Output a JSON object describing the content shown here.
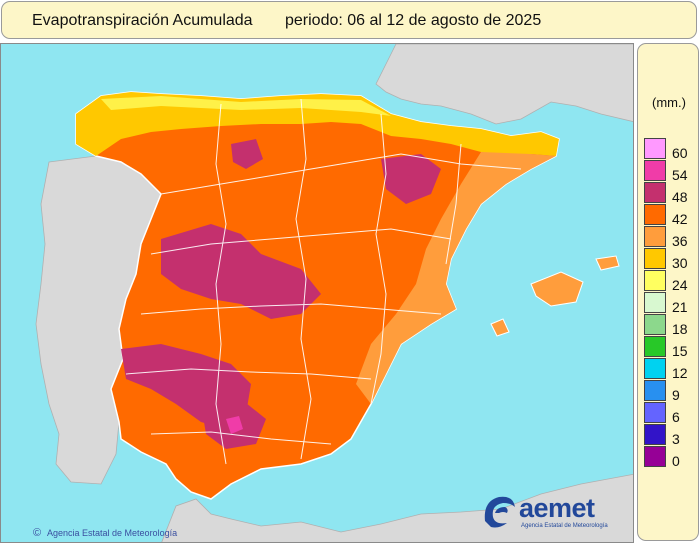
{
  "header": {
    "title": "Evapotranspiración Acumulada",
    "period": "periodo: 06 al 12 de agosto de 2025"
  },
  "legend": {
    "unit": "(mm.)",
    "classes": [
      {
        "label": "60",
        "color": "#ff99ff"
      },
      {
        "label": "54",
        "color": "#f03ca8"
      },
      {
        "label": "48",
        "color": "#c4306e"
      },
      {
        "label": "42",
        "color": "#ff6a00"
      },
      {
        "label": "36",
        "color": "#ff9d3c"
      },
      {
        "label": "30",
        "color": "#ffc800"
      },
      {
        "label": "24",
        "color": "#ffff60"
      },
      {
        "label": "21",
        "color": "#d8f8d0"
      },
      {
        "label": "18",
        "color": "#8cd88c"
      },
      {
        "label": "15",
        "color": "#28c828"
      },
      {
        "label": "12",
        "color": "#00d2f0"
      },
      {
        "label": "9",
        "color": "#2890f0"
      },
      {
        "label": "6",
        "color": "#6464ff"
      },
      {
        "label": "3",
        "color": "#3214c8"
      },
      {
        "label": "0",
        "color": "#960096"
      }
    ]
  },
  "credit": {
    "symbol": "©",
    "text": "Agencia Estatal de Meteorología"
  },
  "logo": {
    "word": "aemet",
    "subtitle": "Agencia Estatal de Meteorología"
  },
  "map_colors": {
    "sea": "#8fe6f1",
    "foreign_land": "#d9d9d9",
    "borders": "#ffffff"
  }
}
